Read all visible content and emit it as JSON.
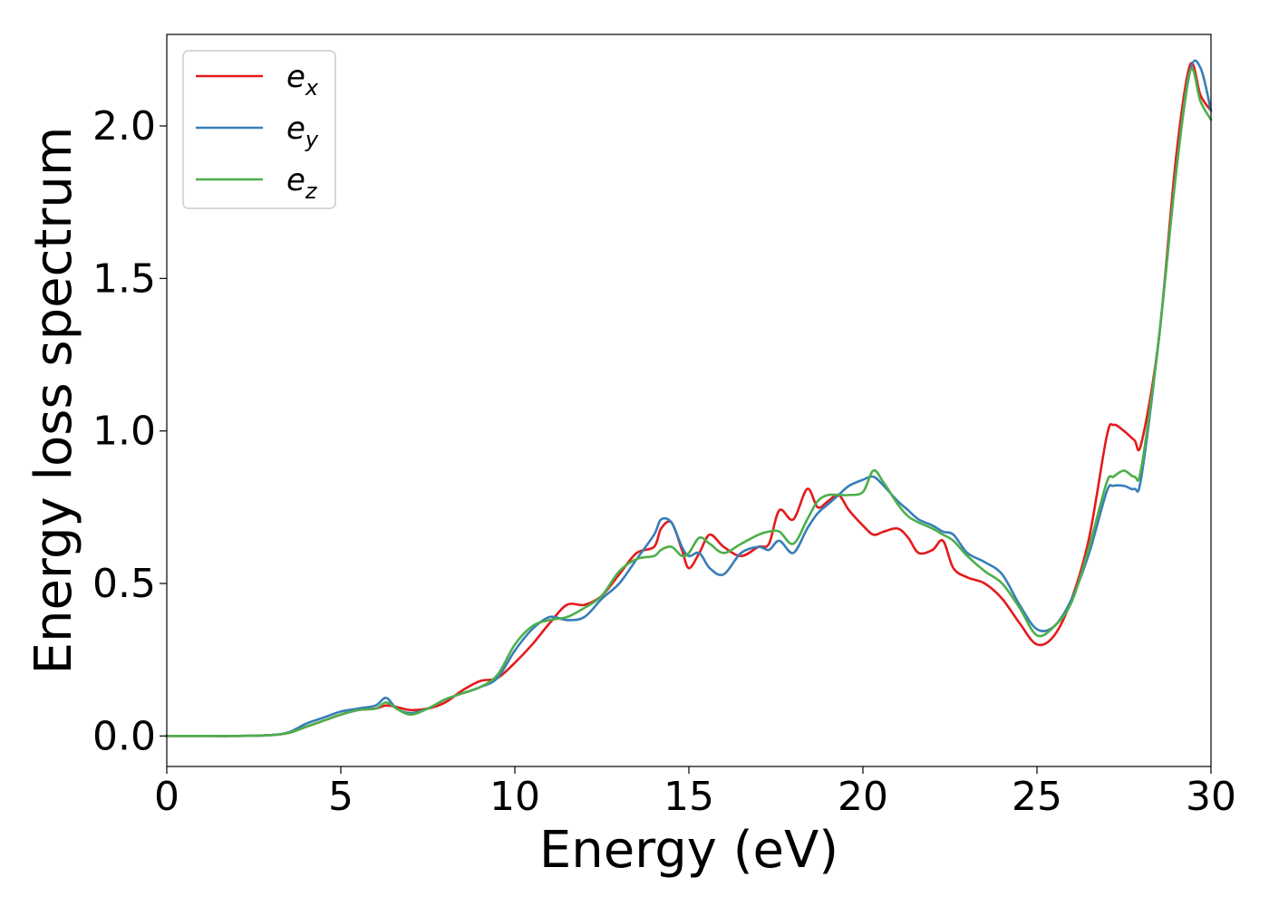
{
  "chart_data": {
    "type": "line",
    "title": "",
    "xlabel": "Energy (eV)",
    "ylabel": "Energy loss spectrum",
    "xlim": [
      0,
      30
    ],
    "ylim": [
      -0.1,
      2.3
    ],
    "xticks": [
      0,
      5,
      10,
      15,
      20,
      25,
      30
    ],
    "xtick_labels": [
      "0",
      "5",
      "10",
      "15",
      "20",
      "25",
      "30"
    ],
    "yticks": [
      0.0,
      0.5,
      1.0,
      1.5,
      2.0
    ],
    "ytick_labels": [
      "0.0",
      "0.5",
      "1.0",
      "1.5",
      "2.0"
    ],
    "grid": false,
    "legend_position": "top-left",
    "series": [
      {
        "name": "e_x",
        "legend_base": "e",
        "legend_sub": "x",
        "color": "#e41a1c",
        "x": [
          0,
          1,
          2,
          3,
          3.5,
          4,
          4.5,
          5,
          5.5,
          6,
          6.3,
          6.6,
          7,
          7.5,
          8,
          8.5,
          9,
          9.5,
          10,
          10.5,
          11,
          11.5,
          12,
          12.5,
          13,
          13.5,
          14,
          14.2,
          14.5,
          14.8,
          15,
          15.3,
          15.6,
          16,
          16.5,
          17,
          17.3,
          17.6,
          18,
          18.4,
          18.7,
          19,
          19.3,
          19.6,
          20,
          20.3,
          20.6,
          21,
          21.3,
          21.6,
          22,
          22.3,
          22.6,
          23,
          23.5,
          24,
          24.5,
          25,
          25.5,
          26,
          26.5,
          27,
          27.2,
          27.5,
          27.8,
          28,
          28.5,
          29,
          29.4,
          29.7,
          30
        ],
        "y": [
          0,
          0,
          0,
          0.003,
          0.01,
          0.03,
          0.05,
          0.07,
          0.085,
          0.09,
          0.1,
          0.095,
          0.085,
          0.09,
          0.11,
          0.15,
          0.18,
          0.19,
          0.24,
          0.3,
          0.37,
          0.43,
          0.43,
          0.46,
          0.53,
          0.6,
          0.62,
          0.68,
          0.7,
          0.61,
          0.55,
          0.6,
          0.66,
          0.62,
          0.59,
          0.62,
          0.63,
          0.74,
          0.71,
          0.81,
          0.75,
          0.77,
          0.79,
          0.74,
          0.69,
          0.66,
          0.67,
          0.68,
          0.65,
          0.6,
          0.61,
          0.64,
          0.55,
          0.52,
          0.5,
          0.45,
          0.37,
          0.3,
          0.33,
          0.45,
          0.65,
          0.98,
          1.02,
          1.0,
          0.97,
          0.96,
          1.3,
          1.9,
          2.2,
          2.1,
          2.05
        ]
      },
      {
        "name": "e_y",
        "legend_base": "e",
        "legend_sub": "y",
        "color": "#377eb8",
        "x": [
          0,
          1,
          2,
          3,
          3.5,
          4,
          4.5,
          5,
          5.5,
          6,
          6.3,
          6.6,
          7,
          7.5,
          8,
          8.5,
          9,
          9.5,
          10,
          10.5,
          11,
          11.5,
          12,
          12.5,
          13,
          13.5,
          14,
          14.2,
          14.5,
          14.8,
          15,
          15.3,
          15.6,
          16,
          16.5,
          17,
          17.3,
          17.6,
          18,
          18.4,
          18.7,
          19,
          19.3,
          19.6,
          20,
          20.3,
          20.6,
          21,
          21.3,
          21.6,
          22,
          22.3,
          22.6,
          23,
          23.5,
          24,
          24.5,
          25,
          25.5,
          26,
          26.5,
          27,
          27.2,
          27.5,
          27.8,
          28,
          28.5,
          29,
          29.4,
          29.7,
          30
        ],
        "y": [
          0,
          0,
          0,
          0.003,
          0.012,
          0.04,
          0.06,
          0.08,
          0.09,
          0.1,
          0.125,
          0.09,
          0.075,
          0.09,
          0.12,
          0.14,
          0.16,
          0.19,
          0.28,
          0.35,
          0.39,
          0.38,
          0.39,
          0.45,
          0.5,
          0.58,
          0.66,
          0.71,
          0.7,
          0.62,
          0.59,
          0.6,
          0.55,
          0.53,
          0.6,
          0.62,
          0.61,
          0.64,
          0.6,
          0.68,
          0.73,
          0.76,
          0.79,
          0.82,
          0.84,
          0.85,
          0.82,
          0.77,
          0.74,
          0.71,
          0.69,
          0.67,
          0.66,
          0.6,
          0.57,
          0.53,
          0.43,
          0.35,
          0.36,
          0.45,
          0.6,
          0.8,
          0.82,
          0.82,
          0.81,
          0.85,
          1.3,
          1.85,
          2.18,
          2.19,
          2.05
        ]
      },
      {
        "name": "e_z",
        "legend_base": "e",
        "legend_sub": "z",
        "color": "#4daf4a",
        "x": [
          0,
          1,
          2,
          3,
          3.5,
          4,
          4.5,
          5,
          5.5,
          6,
          6.3,
          6.6,
          7,
          7.5,
          8,
          8.5,
          9,
          9.5,
          10,
          10.5,
          11,
          11.5,
          12,
          12.5,
          13,
          13.5,
          14,
          14.2,
          14.5,
          14.8,
          15,
          15.3,
          15.6,
          16,
          16.5,
          17,
          17.3,
          17.6,
          18,
          18.4,
          18.7,
          19,
          19.3,
          19.6,
          20,
          20.3,
          20.6,
          21,
          21.3,
          21.6,
          22,
          22.3,
          22.6,
          23,
          23.5,
          24,
          24.5,
          25,
          25.5,
          26,
          26.5,
          27,
          27.2,
          27.5,
          27.8,
          28,
          28.5,
          29,
          29.4,
          29.7,
          30
        ],
        "y": [
          0,
          0,
          0,
          0.003,
          0.01,
          0.03,
          0.05,
          0.07,
          0.085,
          0.09,
          0.11,
          0.09,
          0.07,
          0.09,
          0.12,
          0.14,
          0.16,
          0.2,
          0.3,
          0.36,
          0.38,
          0.39,
          0.42,
          0.46,
          0.54,
          0.58,
          0.59,
          0.61,
          0.62,
          0.59,
          0.6,
          0.65,
          0.63,
          0.6,
          0.63,
          0.66,
          0.67,
          0.67,
          0.63,
          0.71,
          0.77,
          0.79,
          0.79,
          0.79,
          0.8,
          0.87,
          0.83,
          0.76,
          0.72,
          0.7,
          0.68,
          0.66,
          0.64,
          0.59,
          0.54,
          0.5,
          0.42,
          0.33,
          0.36,
          0.44,
          0.62,
          0.83,
          0.85,
          0.87,
          0.85,
          0.88,
          1.3,
          1.85,
          2.18,
          2.08,
          2.02
        ]
      }
    ]
  }
}
